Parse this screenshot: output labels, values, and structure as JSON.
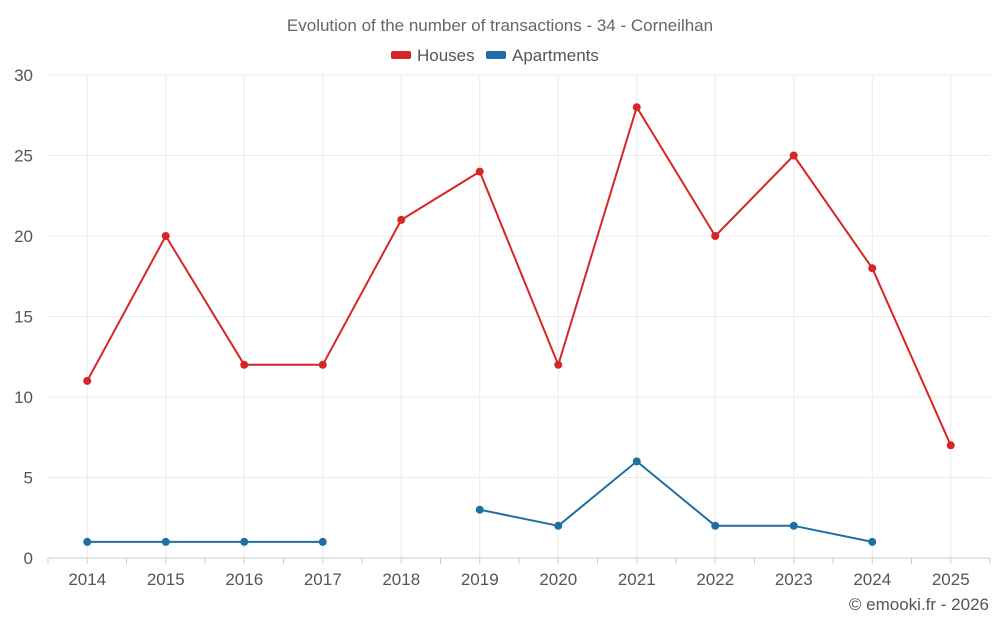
{
  "chart_data": {
    "type": "line",
    "title": "Evolution of the number of transactions - 34 - Corneilhan",
    "xlabel": "",
    "ylabel": "",
    "categories": [
      "2014",
      "2015",
      "2016",
      "2017",
      "2018",
      "2019",
      "2020",
      "2021",
      "2022",
      "2023",
      "2024",
      "2025"
    ],
    "ylim": [
      0,
      30
    ],
    "yticks": [
      0,
      5,
      10,
      15,
      20,
      25,
      30
    ],
    "grid": true,
    "legend_position": "top-center",
    "series": [
      {
        "name": "Houses",
        "color": "#d62728",
        "values": [
          11,
          20,
          12,
          12,
          21,
          24,
          12,
          28,
          20,
          25,
          18,
          7
        ]
      },
      {
        "name": "Apartments",
        "color": "#1f6fa3",
        "values": [
          1,
          1,
          1,
          1,
          null,
          3,
          2,
          6,
          2,
          2,
          1,
          null
        ]
      }
    ]
  },
  "credit": "© emooki.fr - 2026"
}
